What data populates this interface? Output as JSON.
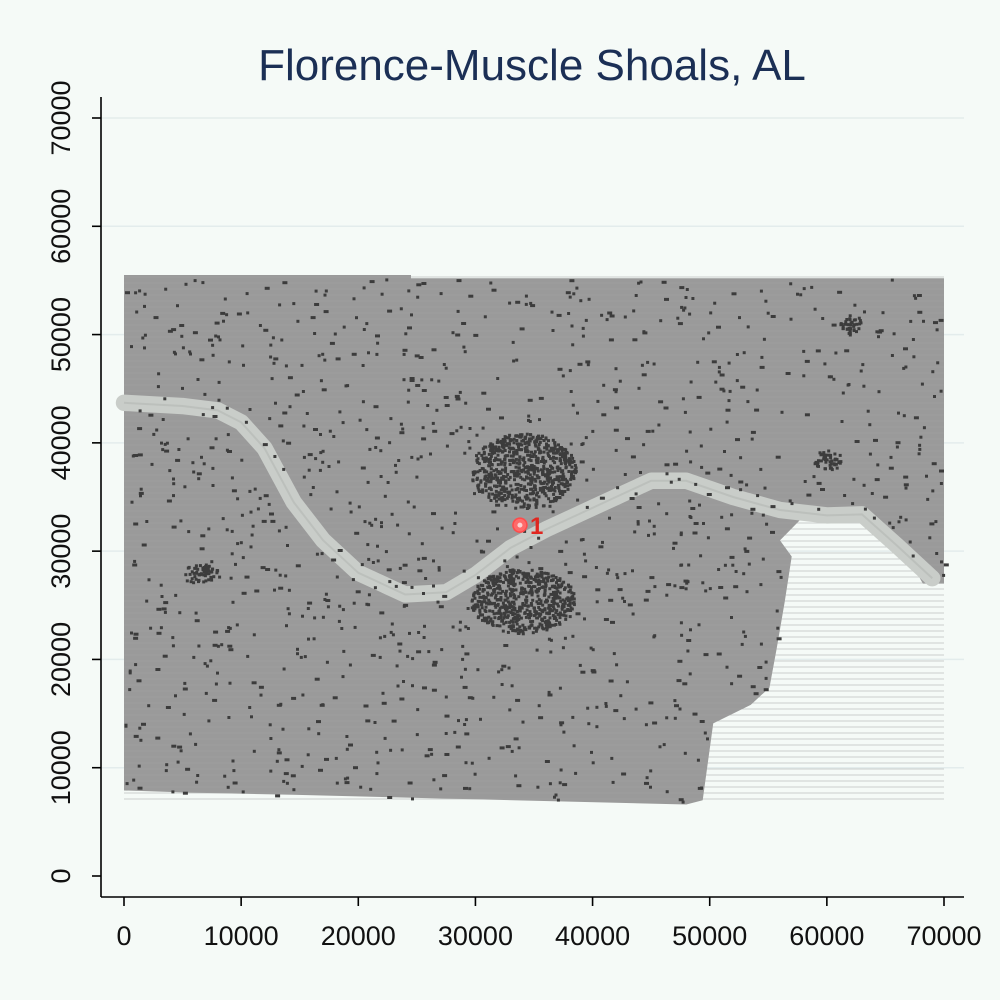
{
  "chart_data": {
    "type": "scatter",
    "title": "Florence-Muscle Shoals, AL",
    "xlabel": "",
    "ylabel": "",
    "xlim": [
      -2000,
      72000
    ],
    "ylim": [
      -2000,
      72000
    ],
    "x_ticks": [
      0,
      10000,
      20000,
      30000,
      40000,
      50000,
      60000,
      70000
    ],
    "y_ticks": [
      0,
      10000,
      20000,
      30000,
      40000,
      50000,
      60000,
      70000
    ],
    "x_tick_labels": [
      "0",
      "10000",
      "20000",
      "30000",
      "40000",
      "50000",
      "60000",
      "70000"
    ],
    "y_tick_labels": [
      "0",
      "10000",
      "20000",
      "30000",
      "40000",
      "50000",
      "60000",
      "70000"
    ],
    "grid": "horizontal",
    "background": {
      "layer": "raster",
      "color": "#9a9a9a",
      "outline": [
        [
          0,
          55500
        ],
        [
          24500,
          55500
        ],
        [
          24500,
          55200
        ],
        [
          70000,
          55200
        ],
        [
          70000,
          27000
        ],
        [
          68200,
          27000
        ],
        [
          66000,
          31200
        ],
        [
          63000,
          33400
        ],
        [
          58000,
          33200
        ],
        [
          56000,
          31000
        ],
        [
          57000,
          29500
        ],
        [
          56400,
          25300
        ],
        [
          55700,
          20900
        ],
        [
          55100,
          17400
        ],
        [
          53500,
          15800
        ],
        [
          50300,
          14100
        ],
        [
          49400,
          7000
        ],
        [
          48000,
          6600
        ],
        [
          14400,
          7500
        ],
        [
          5600,
          7700
        ],
        [
          0,
          7900
        ]
      ]
    },
    "river": {
      "color": "#c9cdc9",
      "centerline": [
        [
          0,
          43700
        ],
        [
          5000,
          43400
        ],
        [
          8000,
          43000
        ],
        [
          10000,
          41900
        ],
        [
          12000,
          39500
        ],
        [
          14500,
          34500
        ],
        [
          17000,
          31000
        ],
        [
          20000,
          28000
        ],
        [
          24000,
          26000
        ],
        [
          27500,
          26200
        ],
        [
          30000,
          27800
        ],
        [
          33000,
          30300
        ],
        [
          36000,
          32000
        ],
        [
          39000,
          33500
        ],
        [
          42000,
          35000
        ],
        [
          45000,
          36500
        ],
        [
          48000,
          36500
        ],
        [
          52000,
          35000
        ],
        [
          56000,
          33800
        ],
        [
          60000,
          33300
        ],
        [
          63000,
          33400
        ],
        [
          66000,
          30500
        ],
        [
          69000,
          27500
        ]
      ],
      "width": 1400
    },
    "settlements": {
      "color": "#3c3c3c",
      "urban_cores": [
        {
          "x": 34000,
          "y": 37500,
          "rx": 4500,
          "ry": 3500
        },
        {
          "x": 34000,
          "y": 25500,
          "rx": 4500,
          "ry": 3000
        },
        {
          "x": 6500,
          "y": 28000,
          "rx": 1500,
          "ry": 900
        },
        {
          "x": 62000,
          "y": 51000,
          "rx": 1000,
          "ry": 800
        },
        {
          "x": 60000,
          "y": 38500,
          "rx": 1200,
          "ry": 900
        }
      ]
    },
    "points": [
      {
        "x": 33800,
        "y": 32400,
        "label": "1",
        "color": "#ff6a6a",
        "label_color": "#e0261f"
      }
    ]
  }
}
